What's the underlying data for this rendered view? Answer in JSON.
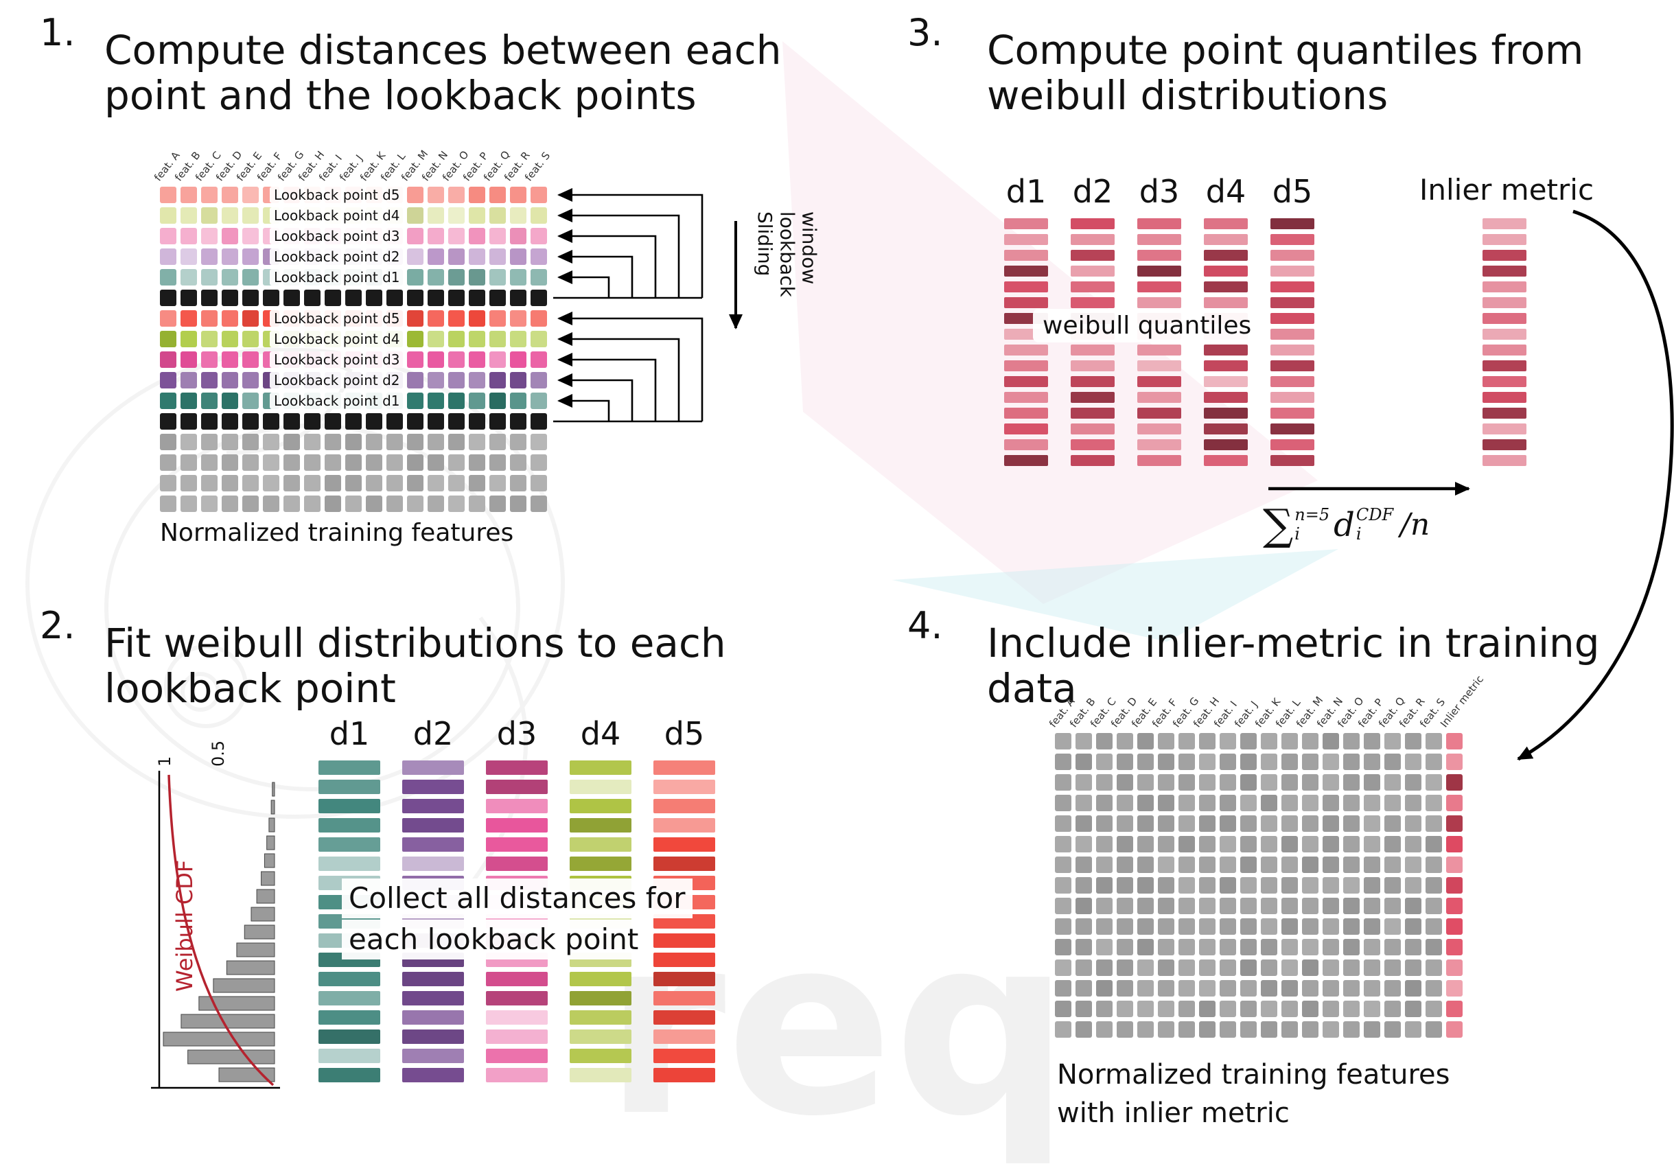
{
  "panel1": {
    "number": "1.",
    "title_lines": [
      "Compute distances between each",
      "point and the lookback points"
    ],
    "caption": "Normalized training features",
    "sliding_lines": [
      "Sliding",
      "lookback",
      "window"
    ],
    "features": [
      "feat. A",
      "feat. B",
      "feat. C",
      "feat. D",
      "feat. E",
      "feat. F",
      "feat. G",
      "feat. H",
      "feat. I",
      "feat. J",
      "feat. K",
      "feat. L",
      "feat. M",
      "feat. N",
      "feat. O",
      "feat. P",
      "feat. Q",
      "feat. R",
      "feat. S"
    ],
    "grid": {
      "cols": 19,
      "seed": 11,
      "rows": [
        {
          "base": "#f6867c",
          "label": "Lookback point d5",
          "vmin": -0.05,
          "vmax": 0.5
        },
        {
          "base": "#dde4a2",
          "label": "Lookback point d4",
          "vmin": -0.1,
          "vmax": 0.45
        },
        {
          "base": "#f193bd",
          "label": "Lookback point d3",
          "vmin": -0.05,
          "vmax": 0.5
        },
        {
          "base": "#bd99cb",
          "label": "Lookback point d2",
          "vmin": -0.1,
          "vmax": 0.5
        },
        {
          "base": "#74a89f",
          "label": "Lookback point d1",
          "vmin": -0.15,
          "vmax": 0.5
        },
        {
          "base": "#1a1a1a",
          "vmin": 0,
          "vmax": 0
        },
        {
          "base": "#f34a3d",
          "label": "Lookback point d5",
          "vmin": -0.12,
          "vmax": 0.4
        },
        {
          "base": "#a9c838",
          "label": "Lookback point d4",
          "vmin": -0.12,
          "vmax": 0.4
        },
        {
          "base": "#e84f9b",
          "label": "Lookback point d3",
          "vmin": -0.12,
          "vmax": 0.4
        },
        {
          "base": "#7a4f96",
          "label": "Lookback point d2",
          "vmin": -0.12,
          "vmax": 0.45
        },
        {
          "base": "#2f7a6e",
          "label": "Lookback point d1",
          "vmin": -0.12,
          "vmax": 0.45
        },
        {
          "base": "#1a1a1a",
          "vmin": 0,
          "vmax": 0
        },
        {
          "base": "#a9a9a9",
          "vmin": -0.08,
          "vmax": 0.16
        },
        {
          "base": "#a9a9a9",
          "vmin": -0.08,
          "vmax": 0.16
        },
        {
          "base": "#a9a9a9",
          "vmin": -0.08,
          "vmax": 0.16
        },
        {
          "base": "#a9a9a9",
          "vmin": -0.08,
          "vmax": 0.16
        }
      ]
    }
  },
  "panel2": {
    "number": "2.",
    "title_lines": [
      "Fit weibull distributions to each",
      "lookback point"
    ],
    "col_labels": [
      "d1",
      "d2",
      "d3",
      "d4",
      "d5"
    ],
    "overlay_lines": [
      "Collect all distances for",
      "each lookback point"
    ],
    "cdf_label": "Weibull CDF",
    "axis_ticks": [
      "1",
      "0.5"
    ],
    "cols": [
      {
        "base": "#3f857b",
        "bars": 17,
        "vmin": -0.25,
        "vmax": 0.7,
        "seed": 21
      },
      {
        "base": "#7a4f96",
        "bars": 17,
        "vmin": -0.25,
        "vmax": 0.7,
        "seed": 22
      },
      {
        "base": "#e8559b",
        "bars": 17,
        "vmin": -0.3,
        "vmax": 0.7,
        "seed": 23
      },
      {
        "base": "#adc23f",
        "bars": 17,
        "vmin": -0.25,
        "vmax": 0.7,
        "seed": 24
      },
      {
        "base": "#f1463a",
        "bars": 17,
        "vmin": -0.25,
        "vmax": 0.7,
        "seed": 25
      }
    ],
    "histogram": {
      "fractions": [
        0.02,
        0.03,
        0.05,
        0.07,
        0.09,
        0.12,
        0.16,
        0.21,
        0.27,
        0.34,
        0.43,
        0.55,
        0.68,
        0.84,
        1.0,
        0.78,
        0.5
      ],
      "bar_color": "#9a9a9a",
      "bar_stroke": "#444444",
      "curve_color": "#b5232f"
    }
  },
  "panel3": {
    "number": "3.",
    "title_lines": [
      "Compute point quantiles from",
      "weibull distributions"
    ],
    "col_labels": [
      "d1",
      "d2",
      "d3",
      "d4",
      "d5"
    ],
    "overlay": "weibull quantiles",
    "inlier_label": "Inlier metric",
    "cols": [
      {
        "base": "#d64e66",
        "bars": 16,
        "vmin": -0.4,
        "vmax": 0.6,
        "seed": 31
      },
      {
        "base": "#d64e66",
        "bars": 16,
        "vmin": -0.4,
        "vmax": 0.6,
        "seed": 32
      },
      {
        "base": "#d64e66",
        "bars": 16,
        "vmin": -0.4,
        "vmax": 0.6,
        "seed": 33
      },
      {
        "base": "#d64e66",
        "bars": 16,
        "vmin": -0.4,
        "vmax": 0.6,
        "seed": 34
      },
      {
        "base": "#d64e66",
        "bars": 16,
        "vmin": -0.4,
        "vmax": 0.6,
        "seed": 35
      }
    ],
    "inlier_col": {
      "base": "#d64e66",
      "bars": 16,
      "vmin": -0.35,
      "vmax": 0.55,
      "seed": 36
    },
    "formula": {
      "sigma": "∑",
      "sup": "n=5",
      "sub": "i",
      "d": "d",
      "dsup": "CDF",
      "dsub": "i",
      "rest": "/n"
    }
  },
  "panel4": {
    "number": "4.",
    "title_lines": [
      "Include inlier-metric in training",
      "data"
    ],
    "caption_lines": [
      "Normalized training features",
      "with inlier metric"
    ],
    "features": [
      "feat. A",
      "feat. B",
      "feat. C",
      "feat. D",
      "feat. E",
      "feat. F",
      "feat. G",
      "feat. H",
      "feat. I",
      "feat. J",
      "feat. K",
      "feat. L",
      "feat. M",
      "feat. N",
      "feat. O",
      "feat. P",
      "feat. Q",
      "feat. R",
      "feat. S",
      "Inlier metric"
    ],
    "grid": {
      "cols": 20,
      "rowCount": 15,
      "seed": 5,
      "row": {
        "base": "#a0a0a0",
        "vmin": -0.08,
        "vmax": 0.14
      },
      "last_col_base": "#e04b63",
      "last_vmin": -0.3,
      "last_vmax": 0.5
    }
  },
  "colors": {
    "d1": "#2f7a6e",
    "d2": "#7a4f96",
    "d3": "#e84f9b",
    "d4": "#a9c838",
    "d5": "#f34a3d",
    "quantile": "#d64e66",
    "cdf_red": "#b5232f",
    "gray": "#a0a0a0",
    "black_row": "#1a1a1a"
  }
}
